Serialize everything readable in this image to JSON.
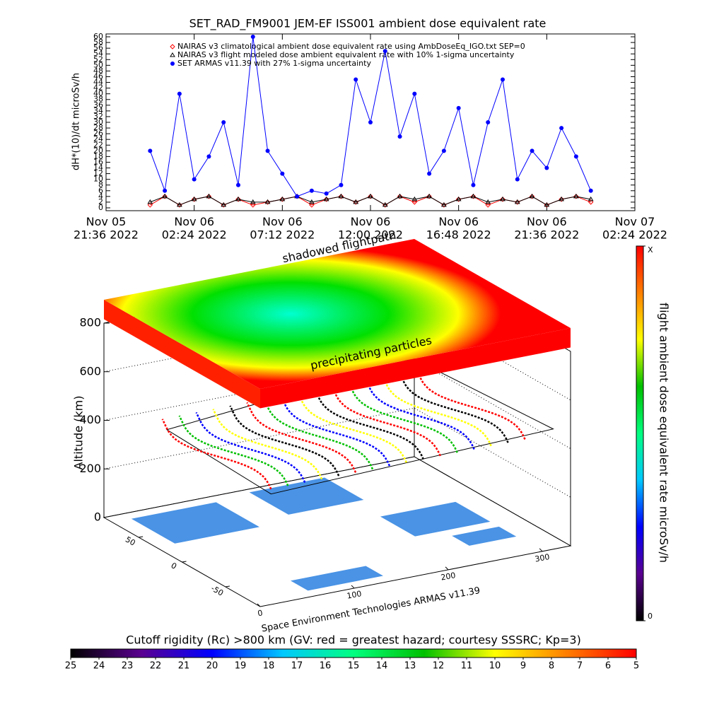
{
  "chart_data": [
    {
      "type": "line",
      "title": "SET_RAD_FM9001  JEM-EF ISS001 ambient dose equivalent rate",
      "y_label": "dH*(10)/dt microSv/h",
      "x": [
        2.4,
        3.2,
        4.0,
        4.8,
        5.6,
        6.4,
        7.2,
        8.0,
        8.8,
        9.6,
        10.4,
        11.2,
        12.0,
        12.8,
        13.6,
        14.4,
        15.2,
        16.0,
        16.8,
        17.6,
        18.4,
        19.2,
        20.0,
        20.8,
        21.6,
        22.4,
        23.2,
        24.0,
        24.8,
        25.6,
        26.4
      ],
      "series": [
        {
          "name": "NAIRAS v3 climatological ambient dose equivalent rate using AmbDoseEq_IGO.txt SEP=0",
          "color": "#ff0000",
          "marker": "diamond",
          "values": [
            1,
            4,
            1,
            3,
            4,
            1,
            3,
            1,
            2,
            3,
            4,
            1,
            3,
            4,
            2,
            4,
            1,
            4,
            2,
            4,
            1,
            3,
            4,
            1,
            3,
            2,
            4,
            1,
            3,
            4,
            2
          ]
        },
        {
          "name": "NAIRAS v3 flight modeled dose ambient equivalent rate with 10% 1-sigma uncertainty",
          "color": "#000000",
          "marker": "triangle",
          "values": [
            2,
            4,
            1,
            3,
            4,
            1,
            3,
            2,
            2,
            3,
            4,
            2,
            3,
            4,
            2,
            4,
            1,
            4,
            3,
            4,
            1,
            3,
            4,
            2,
            3,
            2,
            4,
            1,
            3,
            4,
            3
          ]
        },
        {
          "name": "SET ARMAS v11.39 with 27% 1-sigma uncertainty",
          "color": "#0000ff",
          "marker": "circle",
          "values": [
            20,
            6,
            40,
            10,
            18,
            30,
            8,
            60,
            20,
            12,
            4,
            6,
            5,
            8,
            45,
            30,
            55,
            25,
            40,
            12,
            20,
            35,
            8,
            30,
            45,
            10,
            20,
            14,
            28,
            18,
            6
          ]
        }
      ],
      "xlim": [
        0,
        28.8
      ],
      "xticks": [
        {
          "value": 0,
          "label": "Nov 05\n21:36 2022"
        },
        {
          "value": 4.8,
          "label": "Nov 06\n02:24 2022"
        },
        {
          "value": 9.6,
          "label": "Nov 06\n07:12 2022"
        },
        {
          "value": 14.4,
          "label": "Nov 06\n12:00 2022"
        },
        {
          "value": 19.2,
          "label": "Nov 06\n16:48 2022"
        },
        {
          "value": 24.0,
          "label": "Nov 06\n21:36 2022"
        },
        {
          "value": 28.8,
          "label": "Nov 07\n02:24 2022"
        }
      ],
      "ylim": [
        -1,
        61
      ],
      "yticks": [
        0,
        2,
        4,
        6,
        8,
        10,
        12,
        14,
        16,
        18,
        20,
        22,
        24,
        26,
        28,
        30,
        32,
        34,
        36,
        38,
        40,
        42,
        44,
        46,
        48,
        50,
        52,
        54,
        56,
        58,
        60
      ],
      "legend": "top-left"
    },
    {
      "type": "surface3d",
      "z_label": "Altitude (km)",
      "top_label": "shadowed flightpath",
      "slab_label": "precipitating particles",
      "credit": "Space Environment Technologies ARMAS v11.39",
      "xlim": [
        0,
        330
      ],
      "xticks": [
        0,
        100,
        200,
        300
      ],
      "ylim": [
        -90,
        90
      ],
      "yticks": [
        -50,
        0,
        50
      ],
      "zlim": [
        0,
        800
      ],
      "zticks": [
        0,
        200,
        400,
        600,
        800
      ],
      "grid": true
    },
    {
      "type": "colorbar",
      "label": "flight ambient dose equivalent rate microSv/h",
      "orientation": "vertical",
      "lim": [
        0,
        1
      ],
      "ticks": [
        0,
        {
          "value": 1,
          "label": "X"
        }
      ],
      "colors": [
        "#000000",
        "#5a0090",
        "#0000ff",
        "#00c8ff",
        "#00ff80",
        "#00c000",
        "#ffff00",
        "#ff8000",
        "#ff0000"
      ]
    },
    {
      "type": "colorbar",
      "label": "Cutoff rigidity (Rc) >800 km (GV: red = greatest hazard; courtesy SSSRC; Kp=3)",
      "orientation": "horizontal",
      "lim": [
        25,
        5
      ],
      "ticks": [
        25,
        24,
        23,
        22,
        21,
        20,
        19,
        18,
        17,
        16,
        15,
        14,
        13,
        12,
        11,
        10,
        9,
        8,
        7,
        6,
        5
      ],
      "colors": [
        "#000000",
        "#5a0090",
        "#0000ff",
        "#00c8ff",
        "#00ff80",
        "#00c000",
        "#ffff00",
        "#ff8000",
        "#ff0000"
      ]
    }
  ]
}
